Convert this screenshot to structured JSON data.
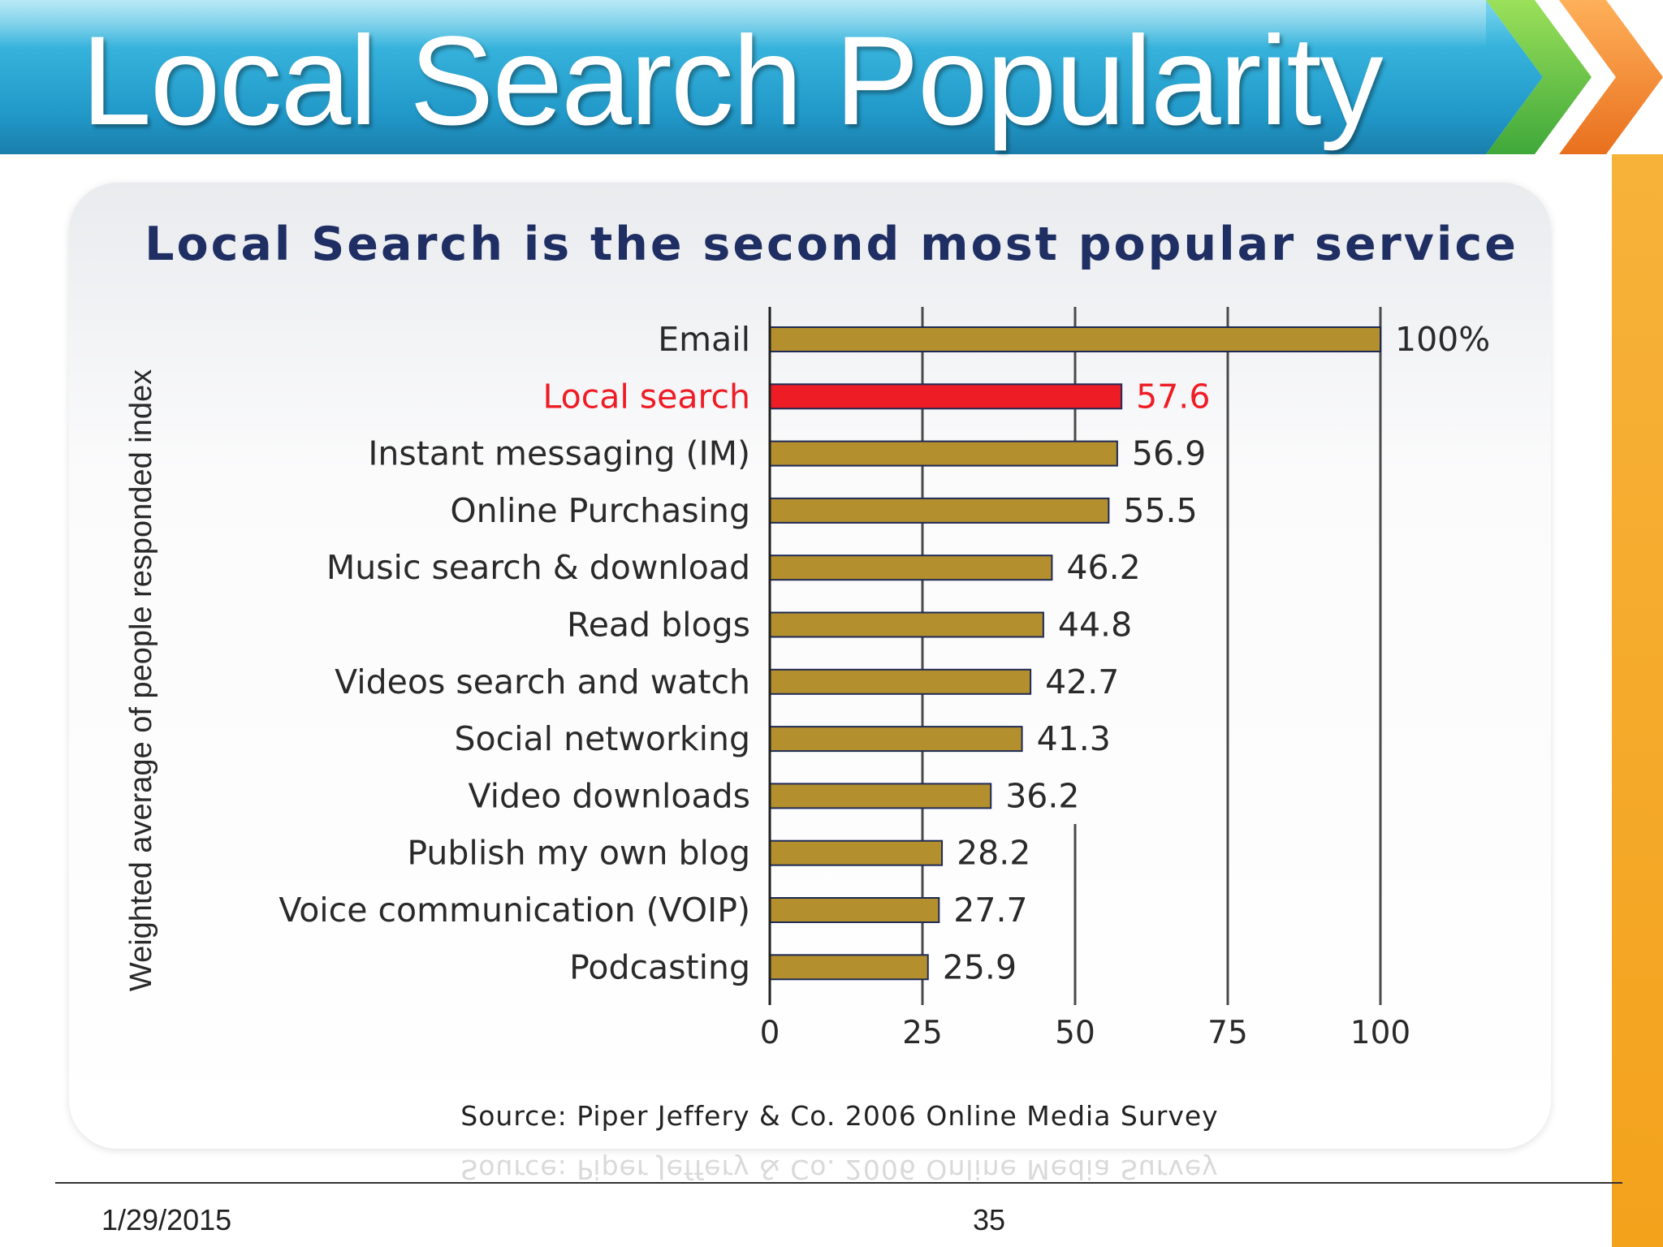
{
  "slide": {
    "title": "Local Search Popularity",
    "date": "1/29/2015",
    "page_number": "35"
  },
  "colors": {
    "bar": "#b38f2e",
    "highlight": "#ee1c25",
    "text": "#2a2a2a",
    "title": "#1f2f63"
  },
  "chart_data": {
    "type": "bar",
    "orientation": "horizontal",
    "title": "Local Search is the second most popular service",
    "ylabel": "Weighted average of people responded index",
    "xlabel": "",
    "xlim": [
      0,
      100
    ],
    "xticks": [
      "0",
      "25",
      "50",
      "75",
      "100"
    ],
    "highlight_index": 1,
    "categories": [
      "Email",
      "Local search",
      "Instant messaging (IM)",
      "Online Purchasing",
      "Music search & download",
      "Read blogs",
      "Videos search and watch",
      "Social networking",
      "Video downloads",
      "Publish my own blog",
      "Voice communication (VOIP)",
      "Podcasting"
    ],
    "values": [
      100,
      57.6,
      56.9,
      55.5,
      46.2,
      44.8,
      42.7,
      41.3,
      36.2,
      28.2,
      27.7,
      25.9
    ],
    "value_labels": [
      "100%",
      "57.6",
      "56.9",
      "55.5",
      "46.2",
      "44.8",
      "42.7",
      "41.3",
      "36.2",
      "28.2",
      "27.7",
      "25.9"
    ],
    "source": "Source: Piper Jeffery & Co. 2006 Online Media Survey"
  }
}
